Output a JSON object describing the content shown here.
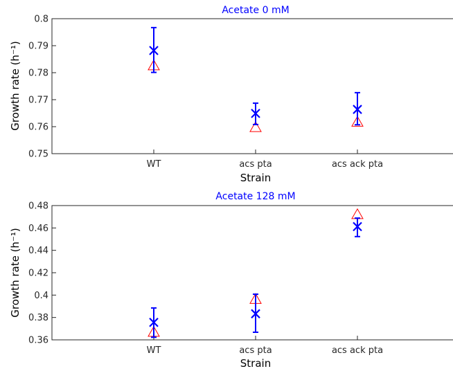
{
  "chart_data": [
    {
      "type": "scatter",
      "title": "Acetate 0 mM",
      "xlabel": "Strain",
      "ylabel": "Growth rate (h⁻¹)",
      "categories": [
        "WT",
        "acs pta",
        "acs ack pta"
      ],
      "ylim": [
        0.75,
        0.8
      ],
      "yticks": [
        0.75,
        0.76,
        0.77,
        0.78,
        0.79,
        0.8
      ],
      "ytick_labels": [
        "0.75",
        "0.76",
        "0.77",
        "0.78",
        "0.79",
        "0.8"
      ],
      "series": [
        {
          "marker": "x",
          "color": "#0000ff",
          "values": [
            0.7882,
            0.7649,
            0.7664
          ],
          "err_low": [
            0.7801,
            0.7608,
            0.7607
          ],
          "err_high": [
            0.7967,
            0.7687,
            0.7726
          ]
        },
        {
          "marker": "triangle",
          "color": "#ff0000",
          "values": [
            0.7826,
            0.7597,
            0.7617
          ]
        }
      ]
    },
    {
      "type": "scatter",
      "title": "Acetate 128 mM",
      "xlabel": "Strain",
      "ylabel": "Growth rate (h⁻¹)",
      "categories": [
        "WT",
        "acs pta",
        "acs ack pta"
      ],
      "ylim": [
        0.36,
        0.48
      ],
      "yticks": [
        0.36,
        0.38,
        0.4,
        0.42,
        0.44,
        0.46,
        0.48
      ],
      "ytick_labels": [
        "0.36",
        "0.38",
        "0.4",
        "0.42",
        "0.44",
        "0.46",
        "0.48"
      ],
      "series": [
        {
          "marker": "x",
          "color": "#0000ff",
          "values": [
            0.3756,
            0.3833,
            0.4612
          ],
          "err_low": [
            0.3623,
            0.3668,
            0.4523
          ],
          "err_high": [
            0.3885,
            0.4008,
            0.4688
          ]
        },
        {
          "marker": "triangle",
          "color": "#ff0000",
          "values": [
            0.3669,
            0.3963,
            0.472
          ]
        }
      ]
    }
  ]
}
